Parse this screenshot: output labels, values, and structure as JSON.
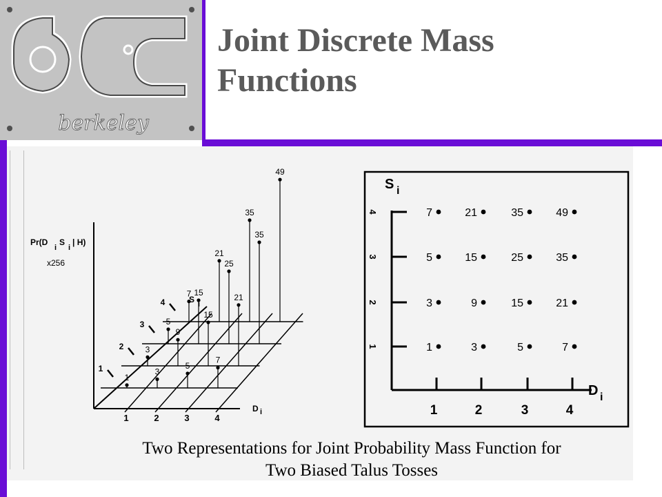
{
  "title_line1": "Joint Discrete Mass",
  "title_line2": "Functions",
  "logo": {
    "text": "berkeley"
  },
  "left_plot": {
    "ylabel": "Pr(D",
    "ylabel_i1": "i",
    "ylabel_mid": "S",
    "ylabel_i2": "i",
    "ylabel_end": "| H)",
    "scale": "x256",
    "d_axis_label": "D",
    "d_axis_sub": "i",
    "s_axis_label": "S",
    "s_axis_sub": "i",
    "d_ticks": [
      "1",
      "2",
      "3",
      "4"
    ],
    "s_ticks": [
      "1",
      "2",
      "3",
      "4"
    ]
  },
  "right_plot": {
    "y_label": "S",
    "y_sub": "i",
    "x_label": "D",
    "x_sub": "i",
    "x_ticks": [
      "1",
      "2",
      "3",
      "4"
    ],
    "y_ticks": [
      "1",
      "2",
      "3",
      "4"
    ]
  },
  "chart_data": {
    "type": "table",
    "x_name": "D",
    "y_name": "S",
    "d_values": [
      1,
      2,
      3,
      4
    ],
    "s_values": [
      1,
      2,
      3,
      4
    ],
    "values_x256": [
      [
        1,
        3,
        5,
        7
      ],
      [
        3,
        9,
        15,
        21
      ],
      [
        5,
        15,
        25,
        35
      ],
      [
        7,
        21,
        35,
        49
      ]
    ]
  },
  "caption_line1": "Two Representations for Joint Probability Mass Function for",
  "caption_line2": "Two Biased Talus Tosses",
  "colors": {
    "accent": "#6a0dd6",
    "title": "#5a5a5a",
    "logo_bg": "#c3c3c3"
  }
}
